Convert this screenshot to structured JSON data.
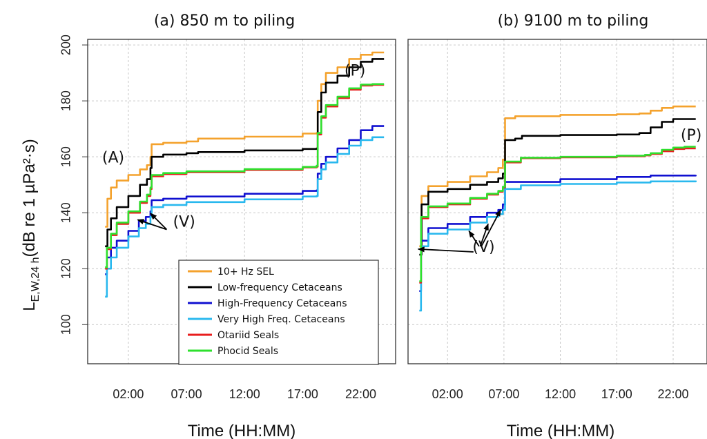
{
  "chart_data": [
    {
      "type": "line",
      "title": "(a) 850 m to piling",
      "xlabel": "Time (HH:MM)",
      "ylabel_main": "L",
      "ylabel_sub": "E,W,24 h",
      "ylabel_rest": "(dB re 1 µPa²·s)",
      "x_ticks": [
        "02:00",
        "07:00",
        "12:00",
        "17:00",
        "22:00"
      ],
      "x_tick_values": [
        2,
        7,
        12,
        17,
        22
      ],
      "xlim": [
        -1.5,
        25
      ],
      "y_ticks": [
        100,
        120,
        140,
        160,
        180,
        200
      ],
      "ylim": [
        86,
        202
      ],
      "grid": true,
      "legend_position": "bottom-center",
      "annotations": [
        {
          "text": "(A)",
          "x": 0.7,
          "y": 158
        },
        {
          "text": "(P)",
          "x": 21.5,
          "y": 189
        },
        {
          "text": "(V)",
          "x": 6.8,
          "y": 135
        }
      ],
      "arrows": [
        {
          "from": [
            5.3,
            134
          ],
          "to": [
            2.8,
            137.5
          ]
        },
        {
          "from": [
            5.3,
            134
          ],
          "to": [
            3.9,
            139.8
          ]
        }
      ],
      "series": [
        {
          "name": "10+ Hz SEL",
          "color": "#f4a22d",
          "x": [
            0,
            0.2,
            0.5,
            1.0,
            2.0,
            3.0,
            3.6,
            3.9,
            4.0,
            5.0,
            7.0,
            8.0,
            12.0,
            17.0,
            18.2,
            18.3,
            18.6,
            19.0,
            20.0,
            21.0,
            22.0,
            23.0,
            24.0
          ],
          "y": [
            135,
            145,
            149,
            151.5,
            153.5,
            155.5,
            157,
            160,
            164.5,
            165,
            165.5,
            166.5,
            167.2,
            168.3,
            168.5,
            180,
            186,
            190,
            192,
            195,
            196.5,
            197.3,
            197.3
          ]
        },
        {
          "name": "Low-frequency Cetaceans",
          "color": "#000000",
          "x": [
            0,
            0.2,
            0.5,
            1.0,
            2.0,
            3.0,
            3.6,
            3.9,
            4.0,
            5.0,
            7.0,
            8.0,
            12.0,
            17.0,
            18.2,
            18.3,
            18.6,
            19.0,
            20.0,
            21.0,
            22.0,
            23.0,
            24.0
          ],
          "y": [
            128,
            134,
            138,
            142,
            146,
            150,
            152,
            156,
            160,
            160.8,
            161.3,
            161.7,
            162.3,
            162.8,
            163,
            176,
            183,
            186.5,
            189,
            192,
            194,
            195,
            195
          ]
        },
        {
          "name": "High-Frequency Cetaceans",
          "color": "#1010d0",
          "x": [
            0,
            0.15,
            0.5,
            1.0,
            2.0,
            2.9,
            3.5,
            3.9,
            4.0,
            5.0,
            7.0,
            12.0,
            17.0,
            18.2,
            18.3,
            18.6,
            19.0,
            20.0,
            21.0,
            22.0,
            23.0,
            24.0
          ],
          "y": [
            118,
            124,
            127.5,
            130,
            133.5,
            137,
            138.5,
            140.5,
            144.5,
            145,
            145.8,
            146.8,
            147.8,
            148,
            154,
            157.5,
            160,
            163,
            166,
            169.5,
            171,
            171
          ]
        },
        {
          "name": "Very High Freq. Cetaceans",
          "color": "#29b8ee",
          "x": [
            0,
            0.15,
            0.5,
            1.0,
            2.0,
            2.9,
            3.5,
            3.9,
            4.0,
            5.0,
            7.0,
            12.0,
            17.0,
            18.2,
            18.3,
            18.6,
            19.0,
            20.0,
            21.0,
            22.0,
            23.0,
            24.0
          ],
          "y": [
            110,
            120,
            124,
            127.5,
            131.5,
            134.5,
            136,
            138.5,
            142,
            142.8,
            143.8,
            144.8,
            145.8,
            146,
            152,
            155.5,
            158,
            161,
            164,
            166,
            167,
            167
          ]
        },
        {
          "name": "Otariid Seals",
          "color": "#e81e1e",
          "x": [
            0,
            0.15,
            0.5,
            1.0,
            2.0,
            3.0,
            3.6,
            3.9,
            4.0,
            5.0,
            7.0,
            12.0,
            17.0,
            18.2,
            18.3,
            18.6,
            19.0,
            20.0,
            21.0,
            22.0,
            23.0,
            24.0
          ],
          "y": [
            120,
            127,
            132,
            136,
            140,
            143.5,
            146,
            148.5,
            153,
            153.8,
            154.5,
            155.3,
            156.2,
            156.5,
            168,
            174,
            178,
            181,
            184,
            185.5,
            185.7,
            185.7
          ]
        },
        {
          "name": "Phocid Seals",
          "color": "#2ee02e",
          "x": [
            0,
            0.15,
            0.5,
            1.0,
            2.0,
            3.0,
            3.6,
            3.9,
            4.0,
            5.0,
            7.0,
            12.0,
            17.0,
            18.2,
            18.3,
            18.6,
            19.0,
            20.0,
            21.0,
            22.0,
            23.0,
            24.0
          ],
          "y": [
            120.5,
            127.5,
            132.5,
            136.5,
            140.5,
            144,
            146.5,
            149,
            153.5,
            154.2,
            154.8,
            155.6,
            156.4,
            156.8,
            168.5,
            174.5,
            178.5,
            181.5,
            184.5,
            185.8,
            186,
            186
          ]
        }
      ]
    },
    {
      "type": "line",
      "title": "(b) 9100 m to piling",
      "xlabel": "Time (HH:MM)",
      "x_ticks": [
        "02:00",
        "07:00",
        "12:00",
        "17:00",
        "22:00"
      ],
      "x_tick_values": [
        2,
        7,
        12,
        17,
        22
      ],
      "xlim": [
        -1.5,
        25
      ],
      "y_ticks": [
        100,
        120,
        140,
        160,
        180,
        200
      ],
      "ylim": [
        86,
        202
      ],
      "grid": true,
      "annotations": [
        {
          "text": "(P)",
          "x": 23.6,
          "y": 166
        },
        {
          "text": "(V)",
          "x": 5.2,
          "y": 126
        }
      ],
      "arrows": [
        {
          "from": [
            4.3,
            126
          ],
          "to": [
            -0.6,
            127
          ]
        },
        {
          "from": [
            4.8,
            128
          ],
          "to": [
            3.9,
            133.5
          ]
        },
        {
          "from": [
            4.9,
            128
          ],
          "to": [
            5.6,
            136
          ]
        },
        {
          "from": [
            5.0,
            128
          ],
          "to": [
            6.7,
            141
          ]
        }
      ],
      "series": [
        {
          "name": "10+ Hz SEL",
          "color": "#f4a22d",
          "x": [
            -0.5,
            -0.3,
            0.3,
            2.0,
            4.0,
            5.5,
            6.5,
            6.9,
            7.1,
            8.0,
            12.0,
            17.0,
            19.0,
            20.0,
            21.0,
            22.0,
            23.0,
            24.0
          ],
          "y": [
            128,
            146,
            149.5,
            151,
            153,
            154.5,
            156,
            159,
            173.8,
            174.5,
            175,
            175.2,
            175.5,
            176.5,
            177.5,
            178,
            178,
            178
          ]
        },
        {
          "name": "Low-frequency Cetaceans",
          "color": "#000000",
          "x": [
            -0.5,
            -0.3,
            0.3,
            2.0,
            4.0,
            5.5,
            6.5,
            6.9,
            7.1,
            8.0,
            8.6,
            12.0,
            17.0,
            19.0,
            20.0,
            21.0,
            22.0,
            23.0,
            24.0
          ],
          "y": [
            125,
            143,
            147.5,
            148.5,
            150,
            151,
            152.3,
            154,
            166,
            166.5,
            167.5,
            167.8,
            168,
            168.5,
            170.5,
            172.5,
            173.5,
            173.5,
            173.5
          ]
        },
        {
          "name": "High-Frequency Cetaceans",
          "color": "#1010d0",
          "x": [
            -0.5,
            -0.35,
            0.3,
            2.0,
            4.0,
            5.5,
            6.5,
            6.9,
            7.1,
            12.0,
            17.0,
            20.0,
            24.0
          ],
          "y": [
            112,
            130,
            134.5,
            136,
            138.5,
            140,
            141,
            143,
            151,
            152,
            152.8,
            153.3,
            153.5
          ]
        },
        {
          "name": "Very High Freq. Cetaceans",
          "color": "#29b8ee",
          "x": [
            -0.5,
            -0.35,
            0.3,
            2.0,
            4.0,
            5.5,
            6.5,
            6.9,
            7.1,
            8.5,
            12.0,
            17.0,
            20.0,
            24.0
          ],
          "y": [
            105,
            128,
            132.5,
            134,
            136.5,
            138.5,
            139.5,
            141,
            148.5,
            149.8,
            150.3,
            150.8,
            151.2,
            151.5
          ]
        },
        {
          "name": "Otariid Seals",
          "color": "#e81e1e",
          "x": [
            -0.5,
            -0.35,
            0.3,
            2.0,
            4.0,
            5.5,
            6.5,
            6.9,
            7.1,
            8.5,
            12.0,
            17.0,
            19.5,
            20.0,
            21.0,
            22.0,
            23.0,
            24.0
          ],
          "y": [
            115,
            138,
            142,
            143,
            145,
            146.5,
            147.5,
            149,
            158,
            159.5,
            159.8,
            160.2,
            160.5,
            161,
            162,
            162.8,
            163,
            163
          ]
        },
        {
          "name": "Phocid Seals",
          "color": "#2ee02e",
          "x": [
            -0.5,
            -0.35,
            0.3,
            2.0,
            4.0,
            5.5,
            6.5,
            6.9,
            7.1,
            8.5,
            12.0,
            17.0,
            19.5,
            20.0,
            21.0,
            22.0,
            23.0,
            24.0
          ],
          "y": [
            115.5,
            138.5,
            142.3,
            143.3,
            145.3,
            146.8,
            147.8,
            149.3,
            158.3,
            159.7,
            160,
            160.4,
            160.7,
            161.3,
            162.5,
            163.3,
            163.6,
            163.6
          ]
        }
      ]
    }
  ],
  "legend": {
    "items": [
      {
        "label": "10+ Hz SEL",
        "color": "#f4a22d"
      },
      {
        "label": "Low-frequency Cetaceans",
        "color": "#000000"
      },
      {
        "label": "High-Frequency Cetaceans",
        "color": "#1010d0"
      },
      {
        "label": "Very High Freq. Cetaceans",
        "color": "#29b8ee"
      },
      {
        "label": "Otariid Seals",
        "color": "#e81e1e"
      },
      {
        "label": "Phocid Seals",
        "color": "#2ee02e"
      }
    ]
  }
}
